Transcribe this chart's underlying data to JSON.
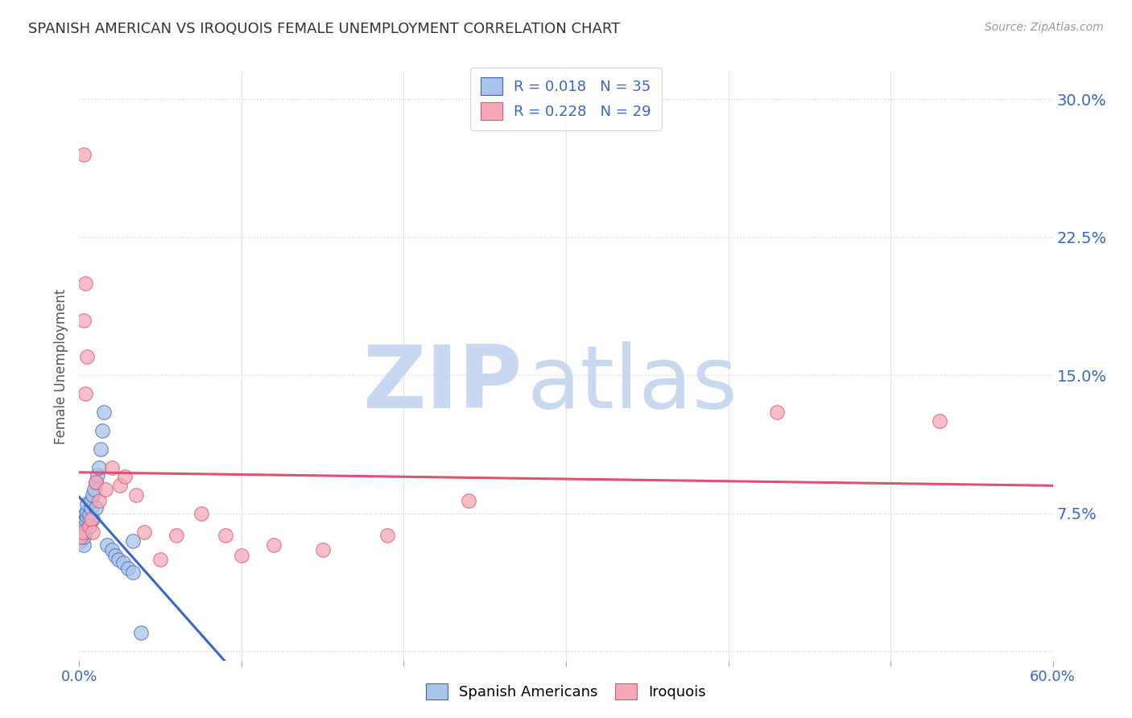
{
  "title": "SPANISH AMERICAN VS IROQUOIS FEMALE UNEMPLOYMENT CORRELATION CHART",
  "source": "Source: ZipAtlas.com",
  "ylabel": "Female Unemployment",
  "ytick_labels": [
    "",
    "7.5%",
    "15.0%",
    "22.5%",
    "30.0%"
  ],
  "ytick_values": [
    0.0,
    0.075,
    0.15,
    0.225,
    0.3
  ],
  "xlim": [
    0.0,
    0.6
  ],
  "ylim": [
    -0.005,
    0.315
  ],
  "spanish_R": "0.018",
  "spanish_N": "35",
  "iroquois_R": "0.228",
  "iroquois_N": "29",
  "spanish_color": "#aac4e8",
  "iroquois_color": "#f4a8b8",
  "spanish_line_color": "#3a65c0",
  "iroquois_line_color": "#e05070",
  "legend_text_color": "#3a65c0",
  "watermark_zip_color": "#c8d8f0",
  "watermark_atlas_color": "#c8d8ee",
  "background_color": "#ffffff",
  "grid_color": "#d8d8d8",
  "spanish_x": [
    0.001,
    0.002,
    0.002,
    0.003,
    0.003,
    0.003,
    0.004,
    0.004,
    0.004,
    0.005,
    0.005,
    0.005,
    0.006,
    0.006,
    0.007,
    0.007,
    0.008,
    0.008,
    0.009,
    0.01,
    0.01,
    0.011,
    0.012,
    0.013,
    0.014,
    0.015,
    0.017,
    0.02,
    0.022,
    0.024,
    0.027,
    0.03,
    0.033,
    0.033,
    0.038
  ],
  "spanish_y": [
    0.06,
    0.065,
    0.068,
    0.058,
    0.062,
    0.07,
    0.072,
    0.075,
    0.065,
    0.073,
    0.076,
    0.08,
    0.068,
    0.074,
    0.078,
    0.082,
    0.072,
    0.085,
    0.088,
    0.092,
    0.078,
    0.096,
    0.1,
    0.11,
    0.12,
    0.13,
    0.058,
    0.055,
    0.052,
    0.05,
    0.048,
    0.045,
    0.043,
    0.06,
    0.01
  ],
  "iroquois_x": [
    0.001,
    0.002,
    0.003,
    0.003,
    0.004,
    0.004,
    0.005,
    0.006,
    0.007,
    0.008,
    0.01,
    0.012,
    0.016,
    0.02,
    0.025,
    0.028,
    0.035,
    0.04,
    0.05,
    0.06,
    0.075,
    0.09,
    0.1,
    0.12,
    0.15,
    0.19,
    0.24,
    0.43,
    0.53
  ],
  "iroquois_y": [
    0.062,
    0.065,
    0.27,
    0.18,
    0.2,
    0.14,
    0.16,
    0.068,
    0.072,
    0.065,
    0.092,
    0.082,
    0.088,
    0.1,
    0.09,
    0.095,
    0.085,
    0.065,
    0.05,
    0.063,
    0.075,
    0.063,
    0.052,
    0.058,
    0.055,
    0.063,
    0.082,
    0.13,
    0.125
  ],
  "xtick_positions": [
    0.0,
    0.1,
    0.2,
    0.3,
    0.4,
    0.5,
    0.6
  ],
  "xtick_labels_show": [
    "0.0%",
    "",
    "",
    "",
    "",
    "",
    "60.0%"
  ]
}
